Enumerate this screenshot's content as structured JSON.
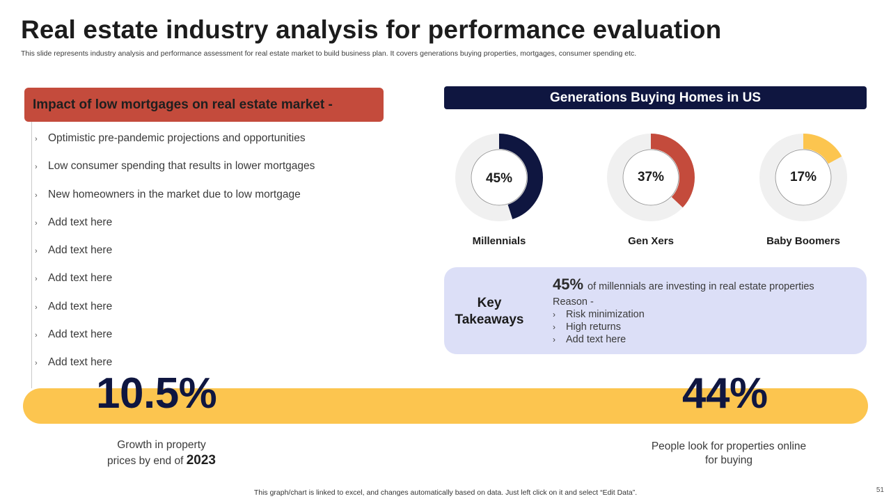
{
  "slide": {
    "title": "Real estate industry analysis for performance evaluation",
    "subtitle": "This slide represents industry analysis and performance assessment for real estate market to build business plan. It covers generations buying properties, mortgages, consumer spending etc.",
    "page_number": "51",
    "footer": "This graph/chart is linked to excel,  and changes automatically based on data. Just left click on it and select “Edit Data”."
  },
  "left": {
    "header": "Impact of low mortgages  on real estate  market -",
    "bullet_icon": "chevron-right-icon",
    "bullets": [
      "Optimistic pre-pandemic projections and opportunities",
      "Low consumer spending that results in lower mortgages",
      "New homeowners  in the market due to low mortgage",
      "Add text here",
      "Add text here",
      "Add text here",
      "Add text here",
      "Add text here",
      "Add text here"
    ]
  },
  "right": {
    "header": "Generations  Buying Homes in US",
    "colors": {
      "track": "#f0f0f0",
      "millennials": "#0f1640",
      "genx": "#c44b3c",
      "boomers": "#fcc54f"
    }
  },
  "chart_data": {
    "type": "pie",
    "title": "Generations  Buying Homes in US",
    "categories": [
      "Millennials",
      "Gen Xers",
      "Baby Boomers"
    ],
    "values": [
      45,
      37,
      17
    ],
    "labels": [
      "45%",
      "37%",
      "17%"
    ],
    "unit": "%"
  },
  "takeaways": {
    "title_line1": "Key",
    "title_line2": "Takeaways",
    "highlight": "45%",
    "statement": "of millennials are investing in real estate properties",
    "reason_label": "Reason -",
    "reasons": [
      "Risk minimization",
      "High returns",
      "Add text here"
    ]
  },
  "stats": {
    "left": {
      "value": "10.5%",
      "desc_line1": "Growth  in property",
      "desc_line2": "prices by end of",
      "year": "2023"
    },
    "right": {
      "value": "44%",
      "desc_line1": "People look for properties online",
      "desc_line2": "for buying"
    }
  }
}
